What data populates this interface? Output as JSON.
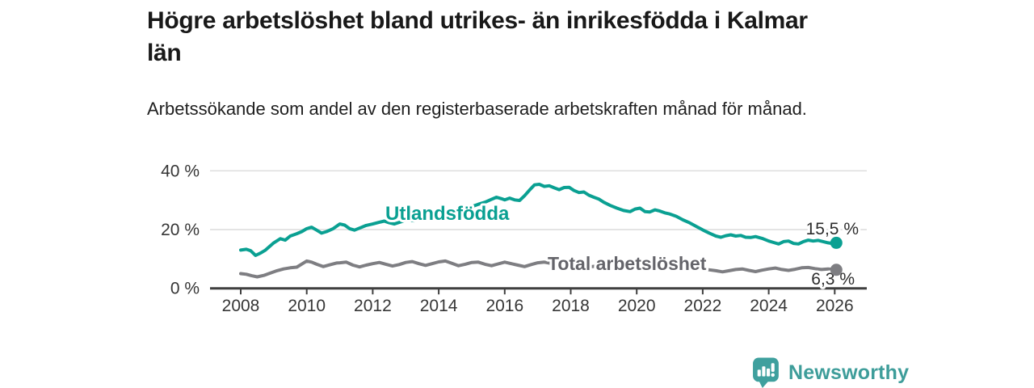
{
  "header": {
    "title": "Högre arbetslöshet bland utrikes- än inrikesfödda i Kalmar län",
    "subtitle": "Arbetssökande som andel av den registerbaserade arbetskraften månad för månad."
  },
  "footer": {
    "brand": "Newsworthy",
    "logo_icon": "speech-bubble-bar-chart-exclamation"
  },
  "colors": {
    "accent_teal": "#0AA092",
    "line_gray": "#7E7E82",
    "series_label_gray": "#64646A",
    "end_label_text": "#2D2D2D",
    "axis": "#3F3F3F",
    "axis_text": "#363636",
    "grid": "#DCDCDC",
    "brand_teal": "#3FA09E",
    "background": "#FFFFFF"
  },
  "chart_data": {
    "type": "line",
    "title": "Högre arbetslöshet bland utrikes- än inrikesfödda i Kalmar län",
    "subtitle": "Arbetssökande som andel av den registerbaserade arbetskraften månad för månad.",
    "xlabel": "",
    "ylabel": "",
    "grid": "horizontal-only",
    "legend_position": "inline-labels-on-lines",
    "x_axis": {
      "ticks": [
        2008,
        2010,
        2012,
        2014,
        2016,
        2018,
        2020,
        2022,
        2024,
        2026
      ],
      "range": [
        2007.1,
        2027.0
      ]
    },
    "y_axis": {
      "ticks": [
        {
          "v": 0,
          "label": "0 %"
        },
        {
          "v": 20,
          "label": "20 %"
        },
        {
          "v": 40,
          "label": "40 %"
        }
      ],
      "range": [
        0,
        40
      ],
      "unit": "%"
    },
    "series": [
      {
        "name": "Utlandsfödda",
        "color": "#0AA092",
        "label_color": "#0AA092",
        "end_label": "15,5 %",
        "end_value": 15.5,
        "points": [
          [
            2008.0,
            13.0
          ],
          [
            2008.17,
            13.3
          ],
          [
            2008.3,
            12.8
          ],
          [
            2008.45,
            11.2
          ],
          [
            2008.6,
            12.0
          ],
          [
            2008.75,
            13.0
          ],
          [
            2009.0,
            15.5
          ],
          [
            2009.2,
            16.9
          ],
          [
            2009.35,
            16.4
          ],
          [
            2009.5,
            17.8
          ],
          [
            2009.7,
            18.6
          ],
          [
            2009.85,
            19.3
          ],
          [
            2010.0,
            20.3
          ],
          [
            2010.15,
            20.8
          ],
          [
            2010.3,
            19.8
          ],
          [
            2010.45,
            18.8
          ],
          [
            2010.6,
            19.3
          ],
          [
            2010.8,
            20.3
          ],
          [
            2011.0,
            21.9
          ],
          [
            2011.15,
            21.5
          ],
          [
            2011.3,
            20.3
          ],
          [
            2011.45,
            19.8
          ],
          [
            2011.6,
            20.5
          ],
          [
            2011.8,
            21.4
          ],
          [
            2012.0,
            21.9
          ],
          [
            2012.2,
            22.5
          ],
          [
            2012.35,
            22.9
          ],
          [
            2012.5,
            22.3
          ],
          [
            2012.65,
            21.9
          ],
          [
            2012.85,
            22.6
          ],
          [
            2013.0,
            23.3
          ],
          [
            2013.25,
            23.0
          ],
          [
            2013.5,
            24.0
          ],
          [
            2013.75,
            24.6
          ],
          [
            2014.0,
            25.3
          ],
          [
            2014.25,
            25.0
          ],
          [
            2014.5,
            26.2
          ],
          [
            2014.75,
            27.0
          ],
          [
            2015.0,
            27.8
          ],
          [
            2015.2,
            28.6
          ],
          [
            2015.4,
            29.3
          ],
          [
            2015.6,
            30.3
          ],
          [
            2015.75,
            31.0
          ],
          [
            2015.9,
            30.5
          ],
          [
            2016.0,
            30.1
          ],
          [
            2016.15,
            30.7
          ],
          [
            2016.3,
            30.1
          ],
          [
            2016.45,
            29.9
          ],
          [
            2016.6,
            31.5
          ],
          [
            2016.75,
            33.4
          ],
          [
            2016.9,
            35.2
          ],
          [
            2017.05,
            35.4
          ],
          [
            2017.2,
            34.7
          ],
          [
            2017.35,
            34.9
          ],
          [
            2017.5,
            34.2
          ],
          [
            2017.65,
            33.6
          ],
          [
            2017.8,
            34.3
          ],
          [
            2017.95,
            34.4
          ],
          [
            2018.1,
            33.3
          ],
          [
            2018.25,
            32.6
          ],
          [
            2018.4,
            32.8
          ],
          [
            2018.55,
            31.7
          ],
          [
            2018.7,
            31.0
          ],
          [
            2018.85,
            30.4
          ],
          [
            2019.0,
            29.3
          ],
          [
            2019.2,
            28.2
          ],
          [
            2019.4,
            27.3
          ],
          [
            2019.6,
            26.5
          ],
          [
            2019.8,
            26.1
          ],
          [
            2019.95,
            27.0
          ],
          [
            2020.1,
            27.3
          ],
          [
            2020.25,
            26.1
          ],
          [
            2020.4,
            26.0
          ],
          [
            2020.55,
            26.7
          ],
          [
            2020.7,
            26.3
          ],
          [
            2020.85,
            25.7
          ],
          [
            2021.0,
            25.3
          ],
          [
            2021.2,
            24.5
          ],
          [
            2021.4,
            23.3
          ],
          [
            2021.6,
            22.3
          ],
          [
            2021.8,
            21.1
          ],
          [
            2022.0,
            19.9
          ],
          [
            2022.2,
            18.8
          ],
          [
            2022.4,
            17.8
          ],
          [
            2022.55,
            17.4
          ],
          [
            2022.7,
            17.9
          ],
          [
            2022.85,
            18.2
          ],
          [
            2023.0,
            17.8
          ],
          [
            2023.15,
            18.0
          ],
          [
            2023.3,
            17.4
          ],
          [
            2023.45,
            17.3
          ],
          [
            2023.6,
            17.6
          ],
          [
            2023.8,
            17.0
          ],
          [
            2024.0,
            16.1
          ],
          [
            2024.15,
            15.6
          ],
          [
            2024.3,
            15.1
          ],
          [
            2024.45,
            15.9
          ],
          [
            2024.6,
            16.1
          ],
          [
            2024.75,
            15.3
          ],
          [
            2024.9,
            15.1
          ],
          [
            2025.05,
            15.9
          ],
          [
            2025.2,
            16.4
          ],
          [
            2025.35,
            16.1
          ],
          [
            2025.5,
            16.3
          ],
          [
            2025.65,
            15.9
          ],
          [
            2025.8,
            15.5
          ],
          [
            2025.95,
            15.2
          ],
          [
            2026.05,
            15.5
          ]
        ]
      },
      {
        "name": "Total arbetslöshet",
        "color": "#7E7E82",
        "label_color": "#64646A",
        "end_label": "6,3 %",
        "end_value": 6.3,
        "points": [
          [
            2008.0,
            5.0
          ],
          [
            2008.17,
            4.8
          ],
          [
            2008.33,
            4.3
          ],
          [
            2008.5,
            3.9
          ],
          [
            2008.7,
            4.4
          ],
          [
            2008.9,
            5.2
          ],
          [
            2009.1,
            6.0
          ],
          [
            2009.3,
            6.6
          ],
          [
            2009.5,
            7.0
          ],
          [
            2009.7,
            7.2
          ],
          [
            2009.9,
            8.6
          ],
          [
            2010.0,
            9.3
          ],
          [
            2010.15,
            8.9
          ],
          [
            2010.3,
            8.2
          ],
          [
            2010.5,
            7.4
          ],
          [
            2010.7,
            8.0
          ],
          [
            2010.9,
            8.6
          ],
          [
            2011.0,
            8.7
          ],
          [
            2011.2,
            8.9
          ],
          [
            2011.4,
            7.9
          ],
          [
            2011.6,
            7.3
          ],
          [
            2011.8,
            7.9
          ],
          [
            2012.0,
            8.4
          ],
          [
            2012.2,
            8.8
          ],
          [
            2012.4,
            8.2
          ],
          [
            2012.6,
            7.6
          ],
          [
            2012.8,
            8.1
          ],
          [
            2013.0,
            8.8
          ],
          [
            2013.2,
            9.1
          ],
          [
            2013.4,
            8.4
          ],
          [
            2013.6,
            7.8
          ],
          [
            2013.8,
            8.4
          ],
          [
            2014.0,
            9.0
          ],
          [
            2014.2,
            9.3
          ],
          [
            2014.4,
            8.5
          ],
          [
            2014.6,
            7.7
          ],
          [
            2014.8,
            8.2
          ],
          [
            2015.0,
            8.8
          ],
          [
            2015.2,
            8.9
          ],
          [
            2015.4,
            8.2
          ],
          [
            2015.6,
            7.7
          ],
          [
            2015.8,
            8.3
          ],
          [
            2016.0,
            8.9
          ],
          [
            2016.2,
            8.4
          ],
          [
            2016.4,
            7.9
          ],
          [
            2016.6,
            7.4
          ],
          [
            2016.8,
            8.1
          ],
          [
            2017.0,
            8.7
          ],
          [
            2017.2,
            8.9
          ],
          [
            2017.4,
            8.5
          ],
          [
            2017.6,
            8.1
          ],
          [
            2017.8,
            7.9
          ],
          [
            2018.0,
            8.2
          ],
          [
            2018.25,
            7.7
          ],
          [
            2018.5,
            7.3
          ],
          [
            2018.75,
            7.5
          ],
          [
            2019.0,
            7.6
          ],
          [
            2019.25,
            7.2
          ],
          [
            2019.5,
            7.0
          ],
          [
            2019.75,
            7.3
          ],
          [
            2020.0,
            7.8
          ],
          [
            2020.25,
            8.8
          ],
          [
            2020.5,
            9.0
          ],
          [
            2020.75,
            8.6
          ],
          [
            2021.0,
            8.3
          ],
          [
            2021.25,
            7.8
          ],
          [
            2021.5,
            7.3
          ],
          [
            2021.75,
            6.9
          ],
          [
            2022.0,
            6.6
          ],
          [
            2022.2,
            6.3
          ],
          [
            2022.4,
            6.0
          ],
          [
            2022.6,
            5.6
          ],
          [
            2022.8,
            6.0
          ],
          [
            2023.0,
            6.4
          ],
          [
            2023.2,
            6.6
          ],
          [
            2023.4,
            6.1
          ],
          [
            2023.6,
            5.7
          ],
          [
            2023.8,
            6.2
          ],
          [
            2024.0,
            6.6
          ],
          [
            2024.2,
            6.9
          ],
          [
            2024.4,
            6.4
          ],
          [
            2024.6,
            6.1
          ],
          [
            2024.8,
            6.5
          ],
          [
            2025.0,
            7.0
          ],
          [
            2025.2,
            7.1
          ],
          [
            2025.4,
            6.7
          ],
          [
            2025.6,
            6.4
          ],
          [
            2025.8,
            6.6
          ],
          [
            2026.05,
            6.3
          ]
        ]
      }
    ]
  }
}
